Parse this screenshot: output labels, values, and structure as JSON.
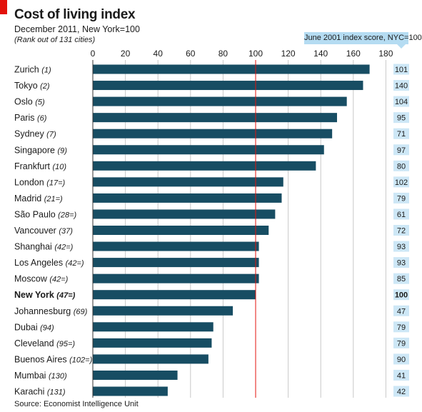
{
  "header": {
    "title": "Cost of living index",
    "subtitle": "December 2011, New York=100",
    "note": "(Rank out of 131 cities)",
    "badge": "June 2001 index score, NYC=100"
  },
  "footer": {
    "source": "Source: Economist Intelligence Unit"
  },
  "colors": {
    "bar": "#174d63",
    "reference": "#e3120b",
    "grid": "#c8c8c8",
    "accent": "#e3120b",
    "badge": "#b5dcf2"
  },
  "chart_data": {
    "type": "bar",
    "orientation": "horizontal",
    "title": "Cost of living index",
    "subtitle": "December 2011, New York=100",
    "xlim": [
      0,
      180
    ],
    "xticks": [
      "0",
      "20",
      "40",
      "60",
      "80",
      "100",
      "120",
      "140",
      "160",
      "180"
    ],
    "reference_line": 100,
    "grid": true,
    "categories": [
      {
        "city": "Zurich",
        "rank": "(1)",
        "value": 170,
        "score_2001": "101",
        "bold": false
      },
      {
        "city": "Tokyo",
        "rank": "(2)",
        "value": 166,
        "score_2001": "140",
        "bold": false
      },
      {
        "city": "Oslo",
        "rank": "(5)",
        "value": 156,
        "score_2001": "104",
        "bold": false
      },
      {
        "city": "Paris",
        "rank": "(6)",
        "value": 150,
        "score_2001": "95",
        "bold": false
      },
      {
        "city": "Sydney",
        "rank": "(7)",
        "value": 147,
        "score_2001": "71",
        "bold": false
      },
      {
        "city": "Singapore",
        "rank": "(9)",
        "value": 142,
        "score_2001": "97",
        "bold": false
      },
      {
        "city": "Frankfurt",
        "rank": "(10)",
        "value": 137,
        "score_2001": "80",
        "bold": false
      },
      {
        "city": "London",
        "rank": "(17=)",
        "value": 117,
        "score_2001": "102",
        "bold": false
      },
      {
        "city": "Madrid",
        "rank": "(21=)",
        "value": 116,
        "score_2001": "79",
        "bold": false
      },
      {
        "city": "São Paulo",
        "rank": "(28=)",
        "value": 112,
        "score_2001": "61",
        "bold": false
      },
      {
        "city": "Vancouver",
        "rank": "(37)",
        "value": 108,
        "score_2001": "72",
        "bold": false
      },
      {
        "city": "Shanghai",
        "rank": "(42=)",
        "value": 102,
        "score_2001": "93",
        "bold": false
      },
      {
        "city": "Los Angeles",
        "rank": "(42=)",
        "value": 102,
        "score_2001": "93",
        "bold": false
      },
      {
        "city": "Moscow",
        "rank": "(42=)",
        "value": 102,
        "score_2001": "85",
        "bold": false
      },
      {
        "city": "New York",
        "rank": "(47=)",
        "value": 100,
        "score_2001": "100",
        "bold": true
      },
      {
        "city": "Johannesburg",
        "rank": "(69)",
        "value": 86,
        "score_2001": "47",
        "bold": false
      },
      {
        "city": "Dubai",
        "rank": "(94)",
        "value": 74,
        "score_2001": "79",
        "bold": false
      },
      {
        "city": "Cleveland",
        "rank": "(95=)",
        "value": 73,
        "score_2001": "79",
        "bold": false
      },
      {
        "city": "Buenos Aires",
        "rank": "(102=)",
        "value": 71,
        "score_2001": "90",
        "bold": false
      },
      {
        "city": "Mumbai",
        "rank": "(130)",
        "value": 52,
        "score_2001": "41",
        "bold": false
      },
      {
        "city": "Karachi",
        "rank": "(131)",
        "value": 46,
        "score_2001": "42",
        "bold": false
      }
    ]
  }
}
